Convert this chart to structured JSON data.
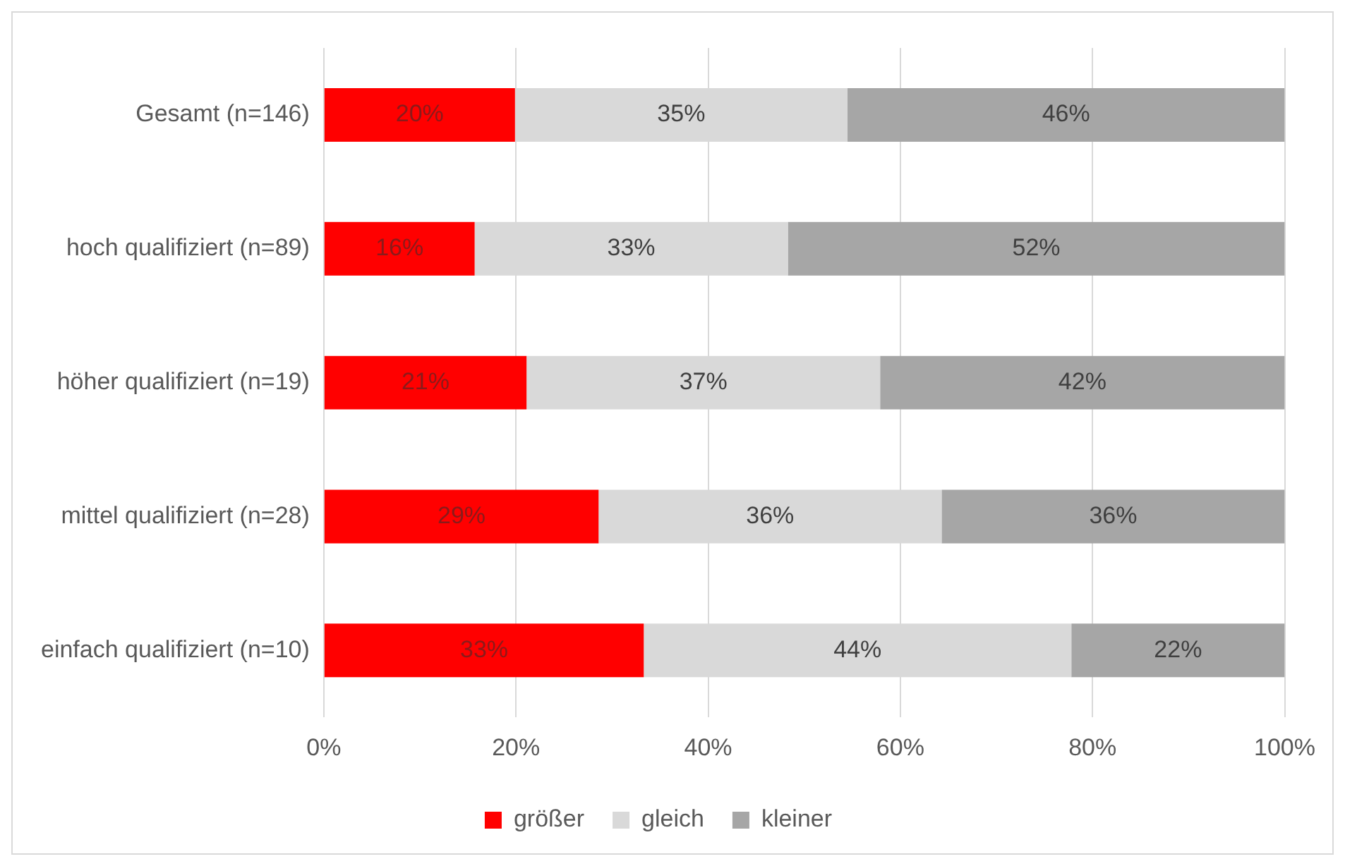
{
  "chart_data": {
    "type": "bar",
    "orientation": "horizontal",
    "stacked": true,
    "categories": [
      "Gesamt (n=146)",
      "hoch qualifiziert (n=89)",
      "höher qualifiziert (n=19)",
      "mittel qualifiziert (n=28)",
      "einfach qualifiziert (n=10)"
    ],
    "series": [
      {
        "name": "größer",
        "color": "#ff0000",
        "values": [
          19.9,
          15.7,
          21.1,
          28.6,
          33.3
        ],
        "value_labels": [
          "20%",
          "16%",
          "21%",
          "29%",
          "33%"
        ]
      },
      {
        "name": "gleich",
        "color": "#d9d9d9",
        "values": [
          34.6,
          32.6,
          36.8,
          35.7,
          44.5
        ],
        "value_labels": [
          "35%",
          "33%",
          "37%",
          "36%",
          "44%"
        ]
      },
      {
        "name": "kleiner",
        "color": "#a6a6a6",
        "values": [
          45.5,
          51.7,
          42.1,
          35.7,
          22.2
        ],
        "value_labels": [
          "46%",
          "52%",
          "42%",
          "36%",
          "22%"
        ]
      }
    ],
    "xlim": [
      0,
      100
    ],
    "xticks": [
      {
        "value": 0,
        "label": "0%"
      },
      {
        "value": 20,
        "label": "20%"
      },
      {
        "value": 40,
        "label": "40%"
      },
      {
        "value": 60,
        "label": "60%"
      },
      {
        "value": 80,
        "label": "80%"
      },
      {
        "value": 100,
        "label": "100%"
      }
    ],
    "grid": "x",
    "legend": "bottom"
  }
}
